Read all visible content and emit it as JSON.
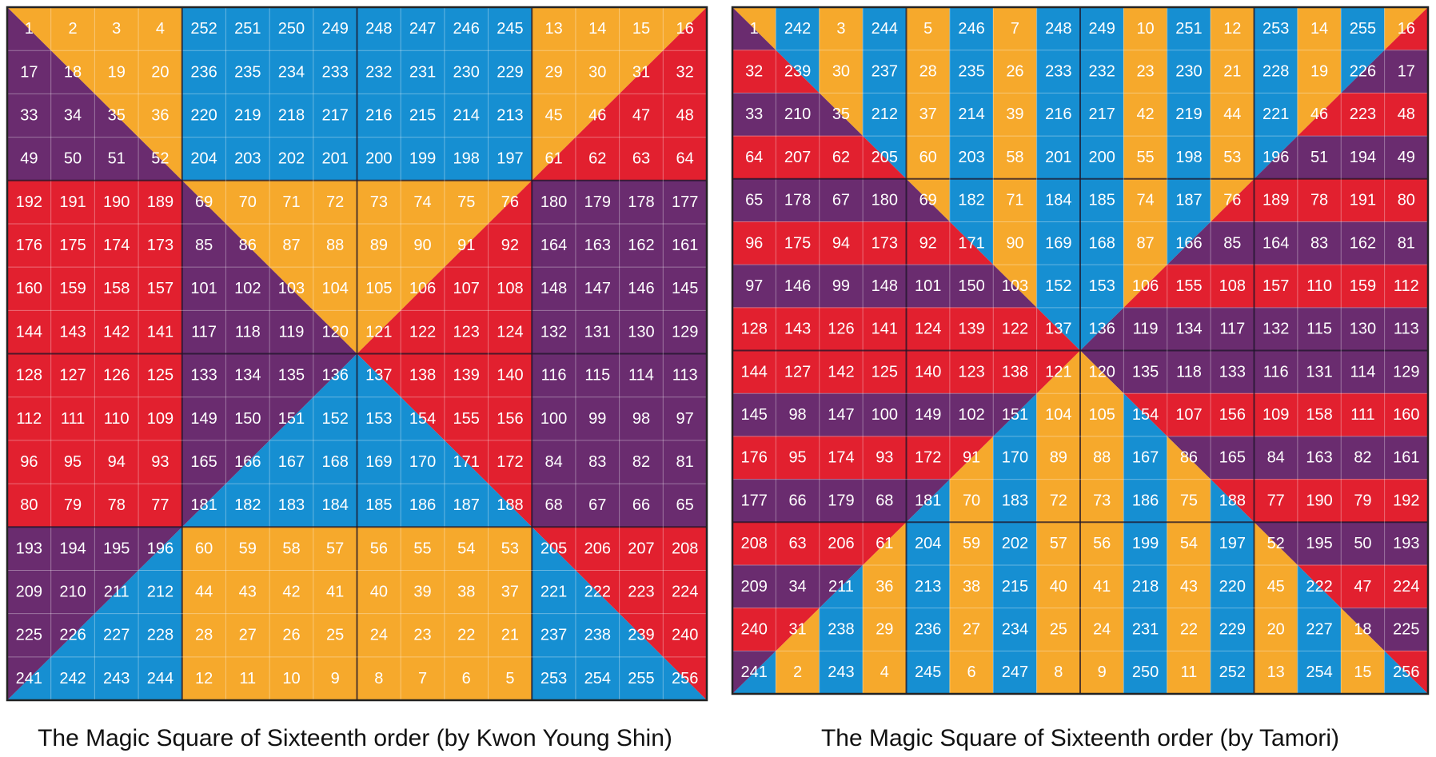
{
  "squares": [
    {
      "caption": "The Magic Square of Sixteenth order (by Kwon Young Shin)",
      "rows": [
        [
          1,
          2,
          3,
          4,
          252,
          251,
          250,
          249,
          248,
          247,
          246,
          245,
          13,
          14,
          15,
          16
        ],
        [
          17,
          18,
          19,
          20,
          236,
          235,
          234,
          233,
          232,
          231,
          230,
          229,
          29,
          30,
          31,
          32
        ],
        [
          33,
          34,
          35,
          36,
          220,
          219,
          218,
          217,
          216,
          215,
          214,
          213,
          45,
          46,
          47,
          48
        ],
        [
          49,
          50,
          51,
          52,
          204,
          203,
          202,
          201,
          200,
          199,
          198,
          197,
          61,
          62,
          63,
          64
        ],
        [
          192,
          191,
          190,
          189,
          69,
          70,
          71,
          72,
          73,
          74,
          75,
          76,
          180,
          179,
          178,
          177
        ],
        [
          176,
          175,
          174,
          173,
          85,
          86,
          87,
          88,
          89,
          90,
          91,
          92,
          164,
          163,
          162,
          161
        ],
        [
          160,
          159,
          158,
          157,
          101,
          102,
          103,
          104,
          105,
          106,
          107,
          108,
          148,
          147,
          146,
          145
        ],
        [
          144,
          143,
          142,
          141,
          117,
          118,
          119,
          120,
          121,
          122,
          123,
          124,
          132,
          131,
          130,
          129
        ],
        [
          128,
          127,
          126,
          125,
          133,
          134,
          135,
          136,
          137,
          138,
          139,
          140,
          116,
          115,
          114,
          113
        ],
        [
          112,
          111,
          110,
          109,
          149,
          150,
          151,
          152,
          153,
          154,
          155,
          156,
          100,
          99,
          98,
          97
        ],
        [
          96,
          95,
          94,
          93,
          165,
          166,
          167,
          168,
          169,
          170,
          171,
          172,
          84,
          83,
          82,
          81
        ],
        [
          80,
          79,
          78,
          77,
          181,
          182,
          183,
          184,
          185,
          186,
          187,
          188,
          68,
          67,
          66,
          65
        ],
        [
          193,
          194,
          195,
          196,
          60,
          59,
          58,
          57,
          56,
          55,
          54,
          53,
          205,
          206,
          207,
          208
        ],
        [
          209,
          210,
          211,
          212,
          44,
          43,
          42,
          41,
          40,
          39,
          38,
          37,
          221,
          222,
          223,
          224
        ],
        [
          225,
          226,
          227,
          228,
          28,
          27,
          26,
          25,
          24,
          23,
          22,
          21,
          237,
          238,
          239,
          240
        ],
        [
          241,
          242,
          243,
          244,
          12,
          11,
          10,
          9,
          8,
          7,
          6,
          5,
          253,
          254,
          255,
          256
        ]
      ]
    },
    {
      "caption": "The Magic Square of Sixteenth order (by Tamori)",
      "rows": [
        [
          1,
          242,
          3,
          244,
          5,
          246,
          7,
          248,
          249,
          10,
          251,
          12,
          253,
          14,
          255,
          16
        ],
        [
          32,
          239,
          30,
          237,
          28,
          235,
          26,
          233,
          232,
          23,
          230,
          21,
          228,
          19,
          226,
          17
        ],
        [
          33,
          210,
          35,
          212,
          37,
          214,
          39,
          216,
          217,
          42,
          219,
          44,
          221,
          46,
          223,
          48
        ],
        [
          64,
          207,
          62,
          205,
          60,
          203,
          58,
          201,
          200,
          55,
          198,
          53,
          196,
          51,
          194,
          49
        ],
        [
          65,
          178,
          67,
          180,
          69,
          182,
          71,
          184,
          185,
          74,
          187,
          76,
          189,
          78,
          191,
          80
        ],
        [
          96,
          175,
          94,
          173,
          92,
          171,
          90,
          169,
          168,
          87,
          166,
          85,
          164,
          83,
          162,
          81
        ],
        [
          97,
          146,
          99,
          148,
          101,
          150,
          103,
          152,
          153,
          106,
          155,
          108,
          157,
          110,
          159,
          112
        ],
        [
          128,
          143,
          126,
          141,
          124,
          139,
          122,
          137,
          136,
          119,
          134,
          117,
          132,
          115,
          130,
          113
        ],
        [
          144,
          127,
          142,
          125,
          140,
          123,
          138,
          121,
          120,
          135,
          118,
          133,
          116,
          131,
          114,
          129
        ],
        [
          145,
          98,
          147,
          100,
          149,
          102,
          151,
          104,
          105,
          154,
          107,
          156,
          109,
          158,
          111,
          160
        ],
        [
          176,
          95,
          174,
          93,
          172,
          91,
          170,
          89,
          88,
          167,
          86,
          165,
          84,
          163,
          82,
          161
        ],
        [
          177,
          66,
          179,
          68,
          181,
          70,
          183,
          72,
          73,
          186,
          75,
          188,
          77,
          190,
          79,
          192
        ],
        [
          208,
          63,
          206,
          61,
          204,
          59,
          202,
          57,
          56,
          199,
          54,
          197,
          52,
          195,
          50,
          193
        ],
        [
          209,
          34,
          211,
          36,
          213,
          38,
          215,
          40,
          41,
          218,
          43,
          220,
          45,
          222,
          47,
          224
        ],
        [
          240,
          31,
          238,
          29,
          236,
          27,
          234,
          25,
          24,
          231,
          22,
          229,
          20,
          227,
          18,
          225
        ],
        [
          241,
          2,
          243,
          4,
          245,
          6,
          247,
          8,
          9,
          250,
          11,
          252,
          13,
          254,
          15,
          256
        ]
      ]
    }
  ]
}
